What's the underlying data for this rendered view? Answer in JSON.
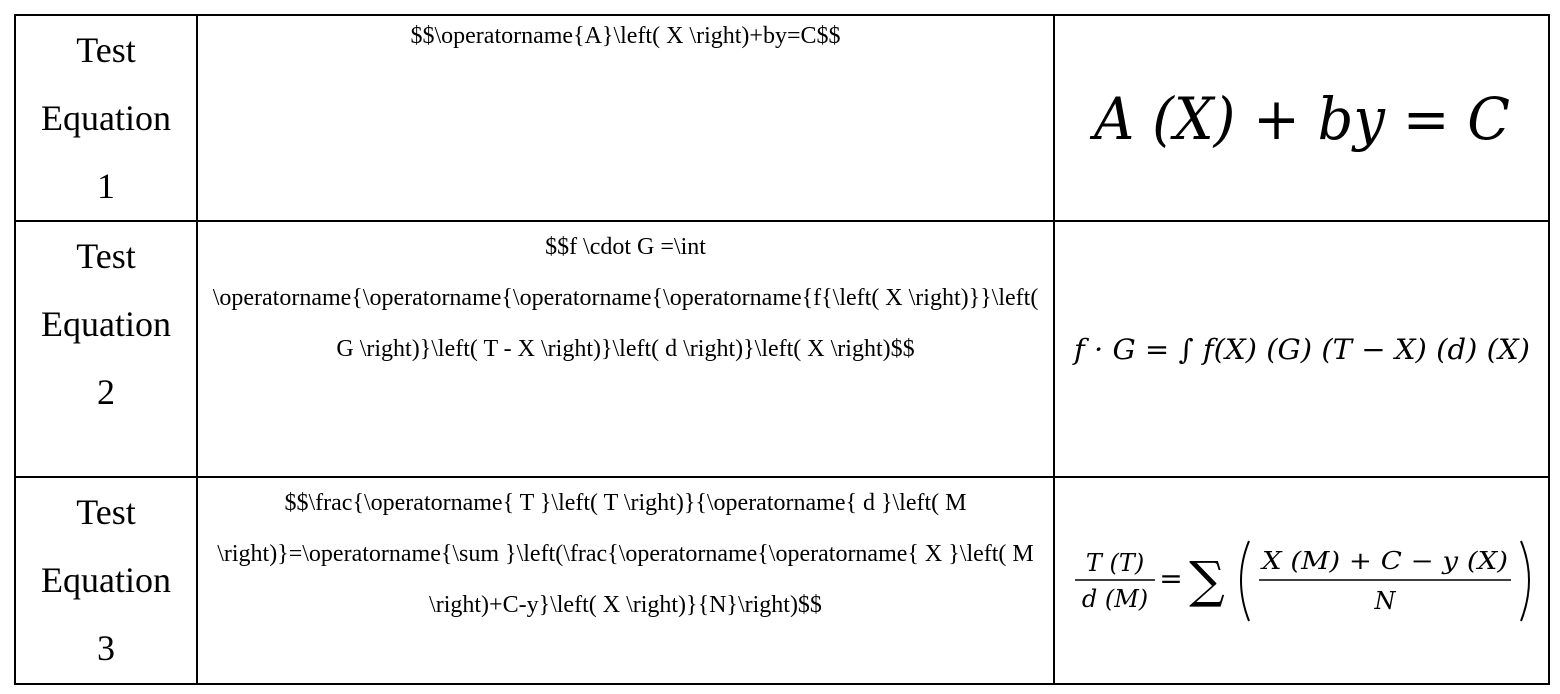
{
  "rows": [
    {
      "label_lines": [
        "Test",
        "Equation",
        "1"
      ],
      "latex_source": "$$\\operatorname{A}\\left( X \\right)+by=C$$",
      "rendered": "A (X) + by = C"
    },
    {
      "label_lines": [
        "Test",
        "Equation",
        "2"
      ],
      "latex_source": "$$f  \\cdot   G =\\int \\operatorname{\\operatorname{\\operatorname{\\operatorname{f{\\left( X \\right)}}\\left( G \\right)}\\left( T - X \\right)}\\left( d \\right)}\\left( X \\right)$$",
      "rendered": "f · G = ∫ f(X) (G) (T − X) (d) (X)"
    },
    {
      "label_lines": [
        "Test",
        "Equation",
        "3"
      ],
      "latex_source": "$$\\frac{\\operatorname{ T }\\left( T \\right)}{\\operatorname{ d }\\left( M \\right)}=\\operatorname{\\sum }\\left(\\frac{\\operatorname{\\operatorname{ X }\\left( M \\right)+C-y}\\left( X \\right)}{N}\\right)$$",
      "rendered": {
        "lhs_num": "T (T)",
        "lhs_den": "d (M)",
        "equals": "=",
        "sum": "∑",
        "rhs_num": "X (M) + C − y (X)",
        "rhs_den": "N"
      }
    }
  ]
}
